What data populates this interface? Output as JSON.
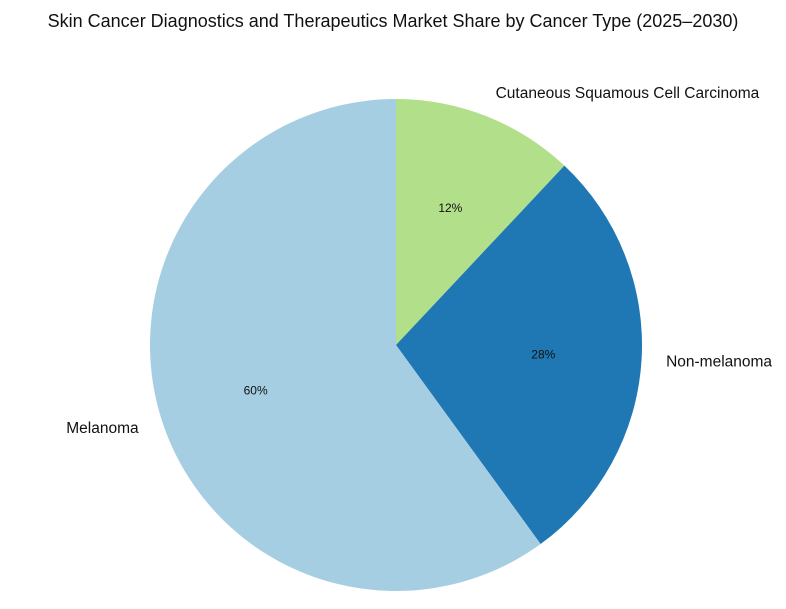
{
  "chart_data": {
    "type": "pie",
    "title": "Skin Cancer Diagnostics and Therapeutics Market Share by Cancer Type (2025–2030)",
    "slices": [
      {
        "label": "Cutaneous Squamous Cell Carcinoma",
        "value": 12,
        "pct_label": "12%",
        "color": "#b2df8a"
      },
      {
        "label": "Non-melanoma",
        "value": 28,
        "pct_label": "28%",
        "color": "#1f78b4"
      },
      {
        "label": "Melanoma",
        "value": 60,
        "pct_label": "60%",
        "color": "#a6cee3"
      }
    ],
    "start_angle_deg": 90,
    "direction": "clockwise",
    "legend": "none"
  }
}
